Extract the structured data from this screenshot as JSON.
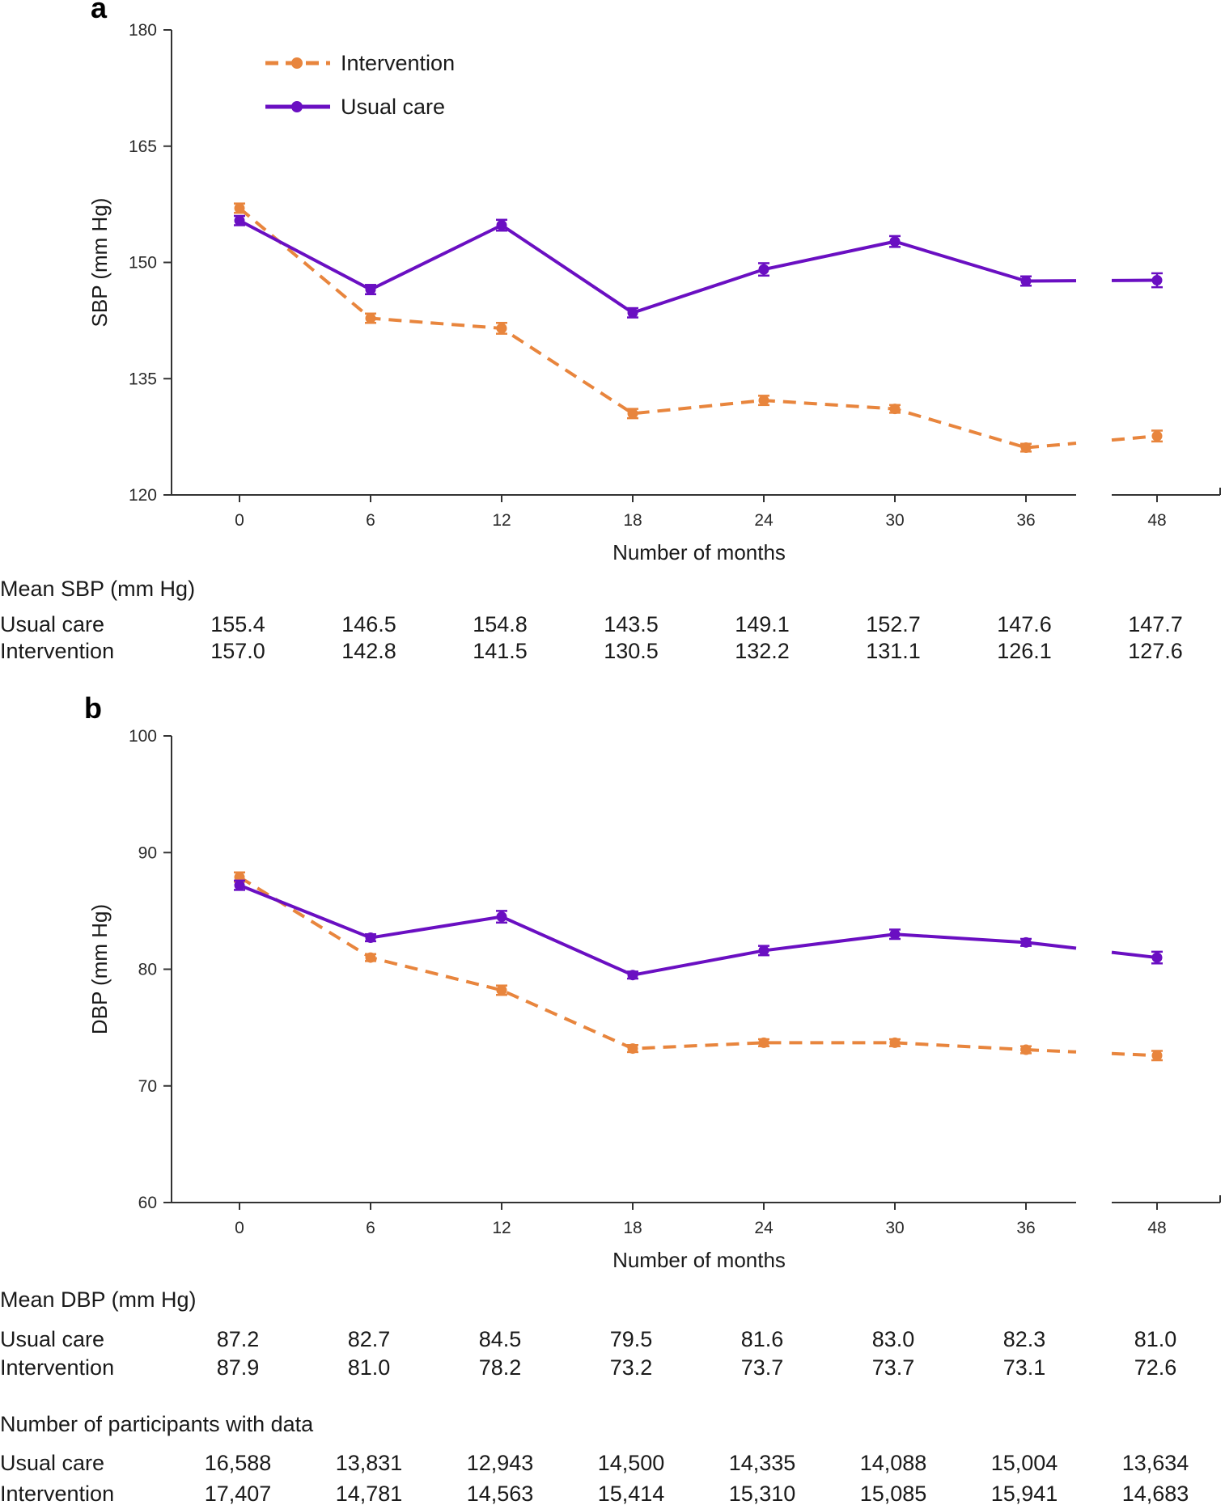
{
  "legend": {
    "intervention": "Intervention",
    "usual_care": "Usual care"
  },
  "colors": {
    "intervention": "#e8853d",
    "usual_care": "#6a0fc2",
    "axis": "#333333"
  },
  "panel_a": {
    "label": "a",
    "table_title": "Mean SBP (mm Hg)",
    "rows": [
      {
        "label": "Usual care",
        "values": [
          "155.4",
          "146.5",
          "154.8",
          "143.5",
          "149.1",
          "152.7",
          "147.6",
          "147.7"
        ]
      },
      {
        "label": "Intervention",
        "values": [
          "157.0",
          "142.8",
          "141.5",
          "130.5",
          "132.2",
          "131.1",
          "126.1",
          "127.6"
        ]
      }
    ]
  },
  "panel_b": {
    "label": "b",
    "table_title": "Mean DBP (mm Hg)",
    "rows": [
      {
        "label": "Usual care",
        "values": [
          "87.2",
          "82.7",
          "84.5",
          "79.5",
          "81.6",
          "83.0",
          "82.3",
          "81.0"
        ]
      },
      {
        "label": "Intervention",
        "values": [
          "87.9",
          "81.0",
          "78.2",
          "73.2",
          "73.7",
          "73.7",
          "73.1",
          "72.6"
        ]
      }
    ]
  },
  "participants": {
    "title": "Number of participants with data",
    "rows": [
      {
        "label": "Usual care",
        "values": [
          "16,588",
          "13,831",
          "12,943",
          "14,500",
          "14,335",
          "14,088",
          "15,004",
          "13,634"
        ]
      },
      {
        "label": "Intervention",
        "values": [
          "17,407",
          "14,781",
          "14,563",
          "15,414",
          "15,310",
          "15,085",
          "15,941",
          "14,683"
        ]
      }
    ]
  },
  "chart_data": [
    {
      "type": "line",
      "title": "a",
      "xlabel": "Number of months",
      "ylabel": "SBP (mm Hg)",
      "x": [
        0,
        6,
        12,
        18,
        24,
        30,
        36,
        48
      ],
      "x_tick_labels": [
        "0",
        "6",
        "12",
        "18",
        "24",
        "30",
        "36",
        "48"
      ],
      "y_ticks": [
        120,
        135,
        150,
        165,
        180
      ],
      "ylim": [
        120,
        180
      ],
      "axis_break": "between 36 and 48",
      "legend_position": "top-left",
      "series": [
        {
          "name": "Intervention",
          "style": "dashed",
          "color": "#e8853d",
          "values": [
            157.0,
            142.8,
            141.5,
            130.5,
            132.2,
            131.1,
            126.1,
            127.6
          ],
          "errors": [
            0.6,
            0.6,
            0.7,
            0.6,
            0.6,
            0.5,
            0.5,
            0.7
          ]
        },
        {
          "name": "Usual care",
          "style": "solid",
          "color": "#6a0fc2",
          "values": [
            155.4,
            146.5,
            154.8,
            143.5,
            149.1,
            152.7,
            147.6,
            147.7
          ],
          "errors": [
            0.6,
            0.6,
            0.7,
            0.6,
            0.8,
            0.7,
            0.6,
            0.9
          ]
        }
      ]
    },
    {
      "type": "line",
      "title": "b",
      "xlabel": "Number of months",
      "ylabel": "DBP (mm Hg)",
      "x": [
        0,
        6,
        12,
        18,
        24,
        30,
        36,
        48
      ],
      "x_tick_labels": [
        "0",
        "6",
        "12",
        "18",
        "24",
        "30",
        "36",
        "48"
      ],
      "y_ticks": [
        60,
        70,
        80,
        90,
        100
      ],
      "ylim": [
        60,
        100
      ],
      "axis_break": "between 36 and 48",
      "series": [
        {
          "name": "Intervention",
          "style": "dashed",
          "color": "#e8853d",
          "values": [
            87.9,
            81.0,
            78.2,
            73.2,
            73.7,
            73.7,
            73.1,
            72.6
          ],
          "errors": [
            0.4,
            0.3,
            0.4,
            0.3,
            0.3,
            0.3,
            0.3,
            0.4
          ]
        },
        {
          "name": "Usual care",
          "style": "solid",
          "color": "#6a0fc2",
          "values": [
            87.2,
            82.7,
            84.5,
            79.5,
            81.6,
            83.0,
            82.3,
            81.0
          ],
          "errors": [
            0.4,
            0.3,
            0.5,
            0.3,
            0.4,
            0.4,
            0.3,
            0.5
          ]
        }
      ]
    }
  ]
}
